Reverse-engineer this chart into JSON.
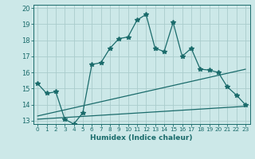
{
  "xlabel": "Humidex (Indice chaleur)",
  "bg_color": "#cce8e8",
  "grid_color": "#aacccc",
  "line_color": "#1a6b6b",
  "xlim": [
    -0.5,
    23.5
  ],
  "ylim": [
    12.8,
    20.2
  ],
  "yticks": [
    13,
    14,
    15,
    16,
    17,
    18,
    19,
    20
  ],
  "xticks": [
    0,
    1,
    2,
    3,
    4,
    5,
    6,
    7,
    8,
    9,
    10,
    11,
    12,
    13,
    14,
    15,
    16,
    17,
    18,
    19,
    20,
    21,
    22,
    23
  ],
  "line1_x": [
    0,
    1,
    2,
    3,
    4,
    5,
    6,
    7,
    8,
    9,
    10,
    11,
    12,
    13,
    14,
    15,
    16,
    17,
    18,
    19,
    20,
    21,
    22,
    23
  ],
  "line1_y": [
    15.3,
    14.7,
    14.8,
    13.1,
    12.8,
    13.5,
    16.5,
    16.6,
    17.5,
    18.1,
    18.2,
    19.25,
    19.6,
    17.5,
    17.3,
    19.1,
    17.0,
    17.5,
    16.2,
    16.15,
    16.0,
    15.1,
    14.6,
    14.0
  ],
  "line2_x": [
    0,
    23
  ],
  "line2_y": [
    13.1,
    13.9
  ],
  "line3_x": [
    0,
    23
  ],
  "line3_y": [
    13.3,
    16.2
  ]
}
